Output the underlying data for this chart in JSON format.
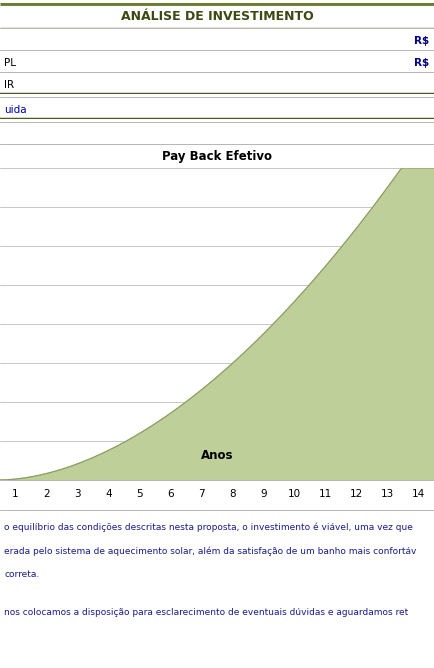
{
  "title": "ANÁLISE DE INVESTIMENTO",
  "title_bg_color": "#cdd9a0",
  "title_font_color": "#3a4a10",
  "title_fontsize": 9,
  "header_bar_color": "#6b7c30",
  "dark_bar_color": "#4a5c1a",
  "payback_label": "Pay Back Efetivo",
  "anos_label": "Anos",
  "x_ticks": [
    1,
    2,
    3,
    4,
    5,
    6,
    7,
    8,
    9,
    10,
    11,
    12,
    13,
    14
  ],
  "curve_fill_color": "#bfcf9a",
  "curve_edge_color": "#8a9a60",
  "text1": "o equilíbrio das condições descritas nesta proposta, o investimento é viável, uma vez que",
  "text2": "erada pelo sistema de aquecimento solar, além da satisfação de um banho mais confortáv",
  "text3": "correta.",
  "text4": "nos colocamos a disposição para esclarecimento de eventuais dúvidas e aguardamos ret",
  "text_color": "#1a1a8c",
  "fig_width": 4.34,
  "fig_height": 6.68,
  "fig_dpi": 100,
  "background_color": "#ffffff",
  "grid_color": "#999999",
  "grid_linewidth": 0.4,
  "rs_color": "#000080",
  "uida_color": "#0000aa",
  "row_label_fontsize": 7.5,
  "tick_fontsize": 7.5
}
